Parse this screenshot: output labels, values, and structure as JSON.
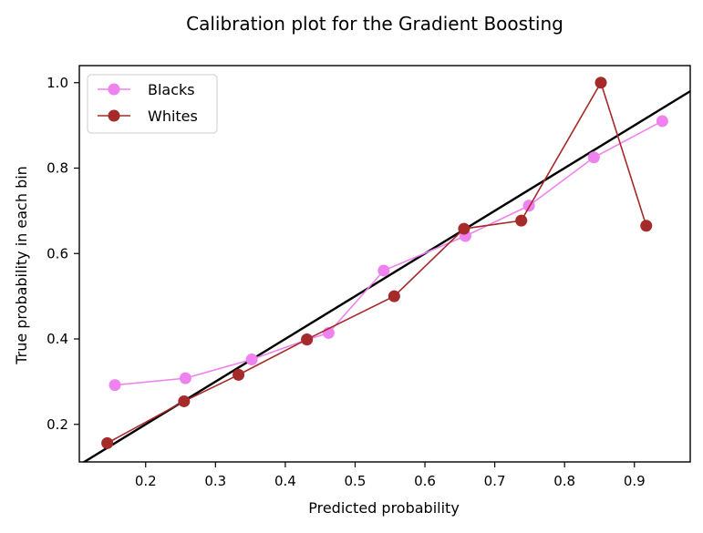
{
  "chart_data": {
    "type": "line",
    "title": "Calibration plot for the Gradient Boosting",
    "xlabel": "Predicted probability",
    "ylabel": "True probability in each bin",
    "xlim": [
      0.105,
      0.98
    ],
    "ylim": [
      0.112,
      1.04
    ],
    "xticks": [
      0.2,
      0.3,
      0.4,
      0.5,
      0.6,
      0.7,
      0.8,
      0.9
    ],
    "xtick_labels": [
      "0.2",
      "0.3",
      "0.4",
      "0.5",
      "0.6",
      "0.7",
      "0.8",
      "0.9"
    ],
    "yticks": [
      0.2,
      0.4,
      0.6,
      0.8,
      1.0
    ],
    "ytick_labels": [
      "0.2",
      "0.4",
      "0.6",
      "0.8",
      "1.0"
    ],
    "grid": false,
    "legend_position": "upper-left",
    "reference_line": {
      "x": [
        0.105,
        0.98
      ],
      "y": [
        0.105,
        0.98
      ],
      "color": "#000000"
    },
    "series": [
      {
        "name": "Blacks",
        "color": "#ee82ee",
        "x": [
          0.156,
          0.257,
          0.352,
          0.431,
          0.462,
          0.541,
          0.658,
          0.749,
          0.842,
          0.94
        ],
        "y": [
          0.292,
          0.308,
          0.352,
          0.398,
          0.414,
          0.56,
          0.641,
          0.712,
          0.825,
          0.91
        ]
      },
      {
        "name": "Whites",
        "color": "#a52a2a",
        "x": [
          0.145,
          0.255,
          0.333,
          0.431,
          0.556,
          0.656,
          0.738,
          0.852,
          0.917
        ],
        "y": [
          0.156,
          0.254,
          0.316,
          0.399,
          0.5,
          0.658,
          0.677,
          1.0,
          0.665
        ]
      }
    ]
  }
}
